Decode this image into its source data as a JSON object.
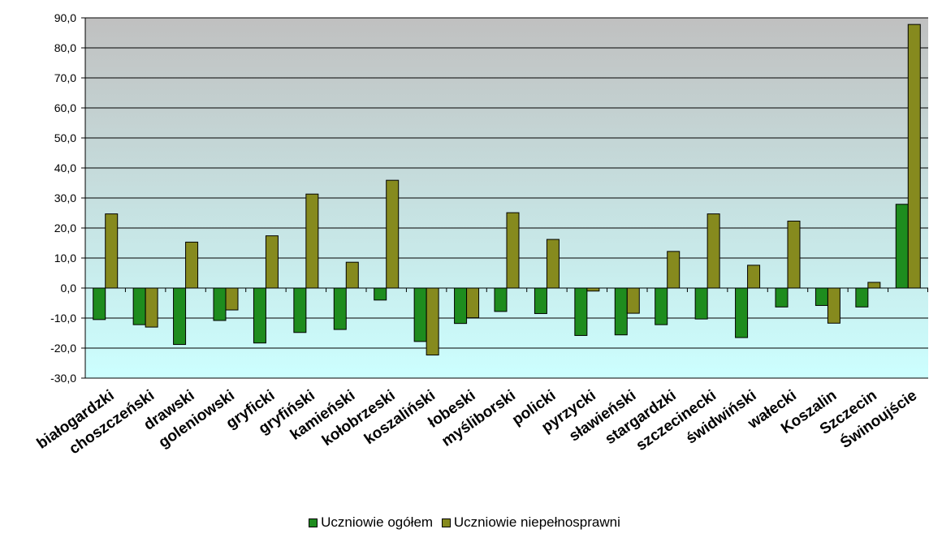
{
  "chart_data": {
    "type": "bar",
    "title": "",
    "xlabel": "",
    "ylabel": "",
    "ylim": [
      -30,
      90
    ],
    "ytick_step": 10,
    "ytick_labels": [
      "-30,0",
      "-20,0",
      "-10,0",
      "0,0",
      "10,0",
      "20,0",
      "30,0",
      "40,0",
      "50,0",
      "60,0",
      "70,0",
      "80,0",
      "90,0"
    ],
    "grid": true,
    "legend_position": "bottom",
    "categories": [
      "białogardzki",
      "choszczeński",
      "drawski",
      "goleniowski",
      "gryficki",
      "gryfiński",
      "kamieński",
      "kołobrzeski",
      "koszaliński",
      "łobeski",
      "myśliborski",
      "policki",
      "pyrzycki",
      "sławieński",
      "stargardzki",
      "szczecinecki",
      "świdwiński",
      "wałecki",
      "Koszalin",
      "Szczecin",
      "Świnoujście"
    ],
    "series": [
      {
        "name": "Uczniowie ogółem",
        "color": "#1e8c1e",
        "values": [
          -10.5,
          -12.2,
          -18.8,
          -10.8,
          -18.3,
          -14.8,
          -13.8,
          -4.0,
          -17.8,
          -11.8,
          -7.8,
          -8.5,
          -15.8,
          -15.6,
          -12.2,
          -10.3,
          -16.5,
          -6.3,
          -5.8,
          -6.3,
          27.9
        ]
      },
      {
        "name": "Uczniowie niepełnosprawni",
        "color": "#868a1e",
        "values": [
          24.7,
          -13.0,
          15.3,
          -7.3,
          17.4,
          31.3,
          8.6,
          35.9,
          -22.3,
          -9.9,
          25.1,
          16.2,
          -1.0,
          -8.4,
          12.2,
          24.7,
          7.6,
          22.3,
          -11.7,
          1.9,
          87.8
        ]
      }
    ],
    "background": {
      "top_color": "#c0c0c0",
      "bottom_color": "#ccffff"
    }
  },
  "legend": {
    "items": [
      {
        "label": "Uczniowie ogółem",
        "color": "#1e8c1e"
      },
      {
        "label": "Uczniowie niepełnosprawni",
        "color": "#868a1e"
      }
    ]
  }
}
